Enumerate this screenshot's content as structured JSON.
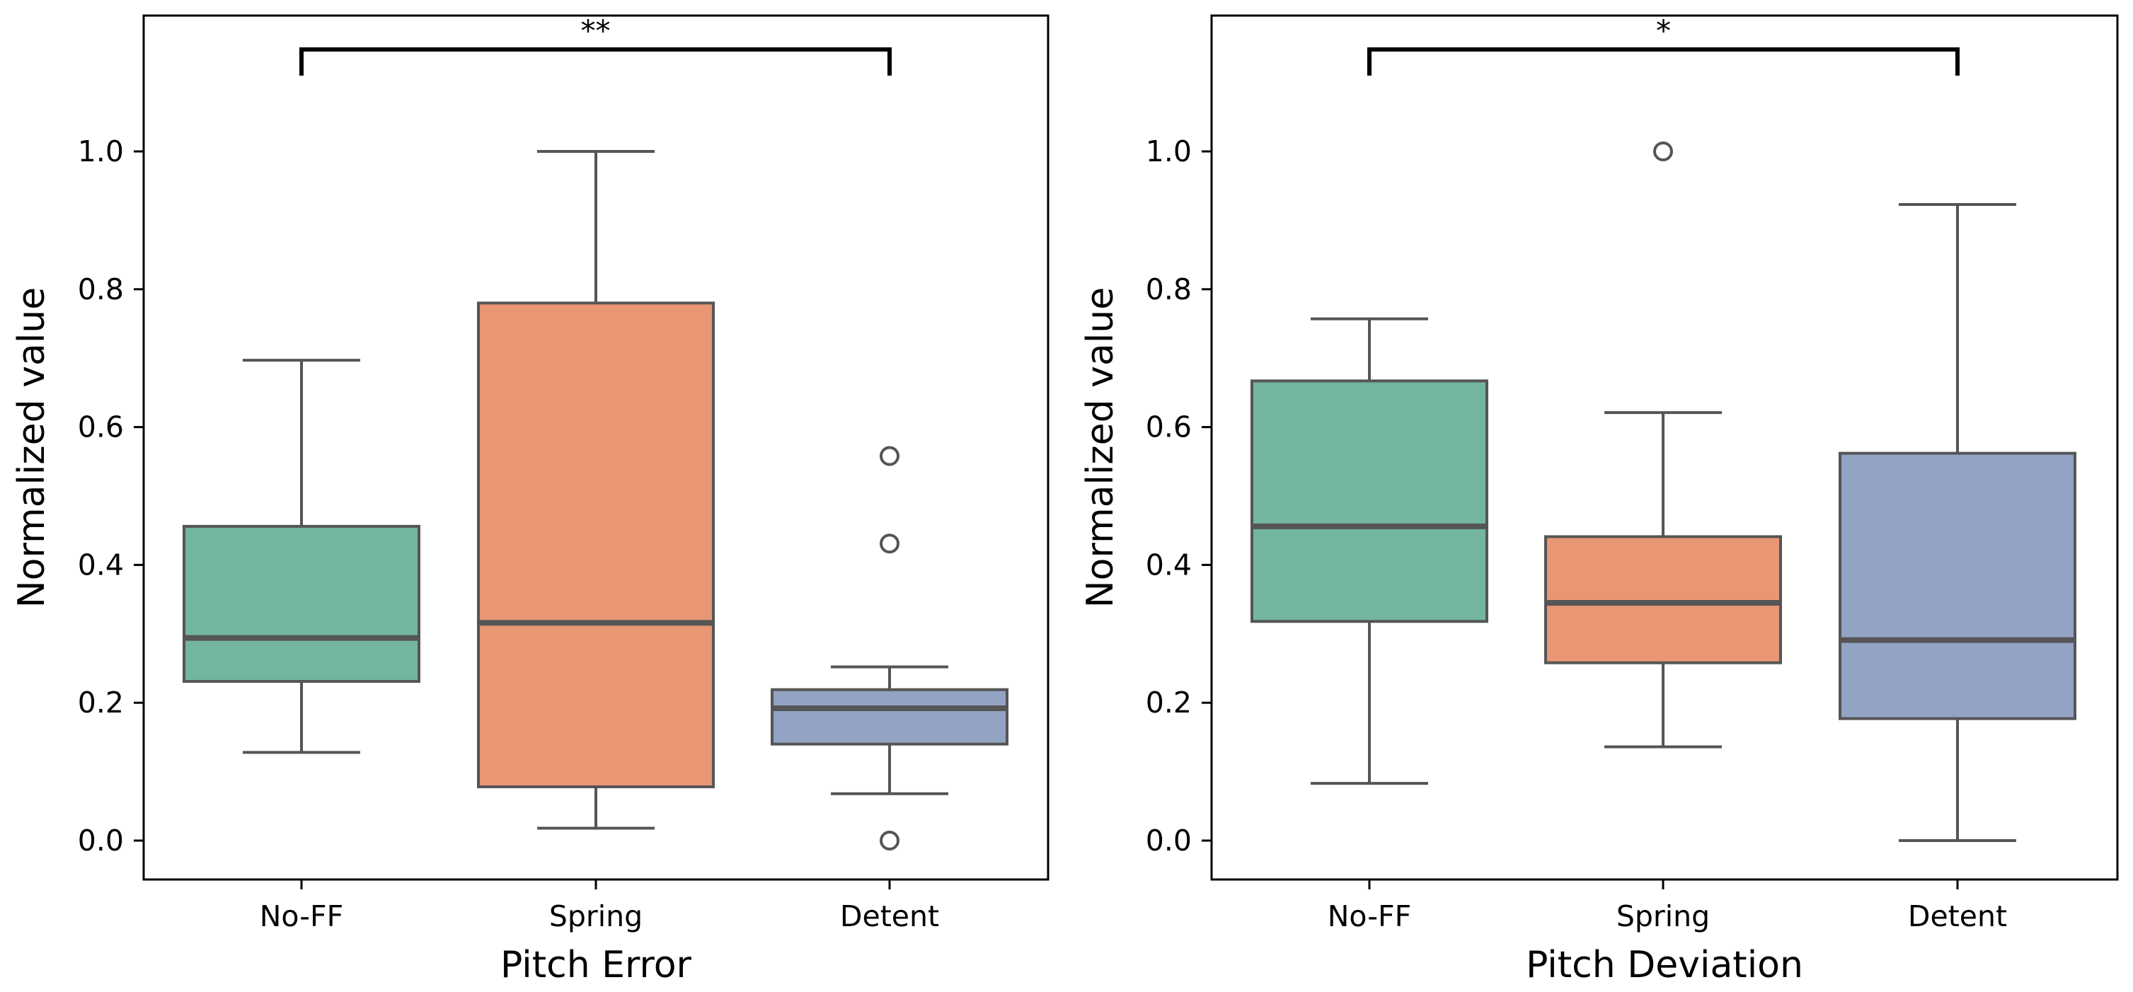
{
  "chart_data": [
    {
      "type": "box",
      "title": "",
      "xlabel": "Pitch Error",
      "ylabel": "Normalized value",
      "ylim": [
        -0.057,
        1.2
      ],
      "yticks": [
        0.0,
        0.2,
        0.4,
        0.6,
        0.8,
        1.0
      ],
      "ytick_labels": [
        "0.0",
        "0.2",
        "0.4",
        "0.6",
        "0.8",
        "1.0"
      ],
      "categories": [
        "No-FF",
        "Spring",
        "Detent"
      ],
      "boxes": [
        {
          "name": "No-FF",
          "color": "#73b59f",
          "whisker_low": 0.128,
          "q1": 0.231,
          "median": 0.294,
          "q3": 0.456,
          "whisker_high": 0.697,
          "outliers": []
        },
        {
          "name": "Spring",
          "color": "#e89674",
          "whisker_low": 0.018,
          "q1": 0.078,
          "median": 0.316,
          "q3": 0.78,
          "whisker_high": 1.0,
          "outliers": []
        },
        {
          "name": "Detent",
          "color": "#92a3c3",
          "whisker_low": 0.068,
          "q1": 0.14,
          "median": 0.192,
          "q3": 0.219,
          "whisker_high": 0.252,
          "outliers": [
            0.558,
            0.431,
            0.0
          ]
        }
      ],
      "significance": {
        "from": "No-FF",
        "to": "Detent",
        "label": "**",
        "y": 1.148,
        "tip_y": 1.11
      }
    },
    {
      "type": "box",
      "title": "",
      "xlabel": "Pitch Deviation",
      "ylabel": "Normalized value",
      "ylim": [
        -0.057,
        1.2
      ],
      "yticks": [
        0.0,
        0.2,
        0.4,
        0.6,
        0.8,
        1.0
      ],
      "ytick_labels": [
        "0.0",
        "0.2",
        "0.4",
        "0.6",
        "0.8",
        "1.0"
      ],
      "categories": [
        "No-FF",
        "Spring",
        "Detent"
      ],
      "boxes": [
        {
          "name": "No-FF",
          "color": "#73b59f",
          "whisker_low": 0.083,
          "q1": 0.318,
          "median": 0.456,
          "q3": 0.667,
          "whisker_high": 0.757,
          "outliers": []
        },
        {
          "name": "Spring",
          "color": "#e89674",
          "whisker_low": 0.136,
          "q1": 0.258,
          "median": 0.345,
          "q3": 0.441,
          "whisker_high": 0.621,
          "outliers": [
            1.0
          ]
        },
        {
          "name": "Detent",
          "color": "#92a3c3",
          "whisker_low": 0.0,
          "q1": 0.177,
          "median": 0.291,
          "q3": 0.562,
          "whisker_high": 0.923,
          "outliers": []
        }
      ],
      "significance": {
        "from": "No-FF",
        "to": "Detent",
        "label": "*",
        "y": 1.148,
        "tip_y": 1.11
      }
    }
  ]
}
